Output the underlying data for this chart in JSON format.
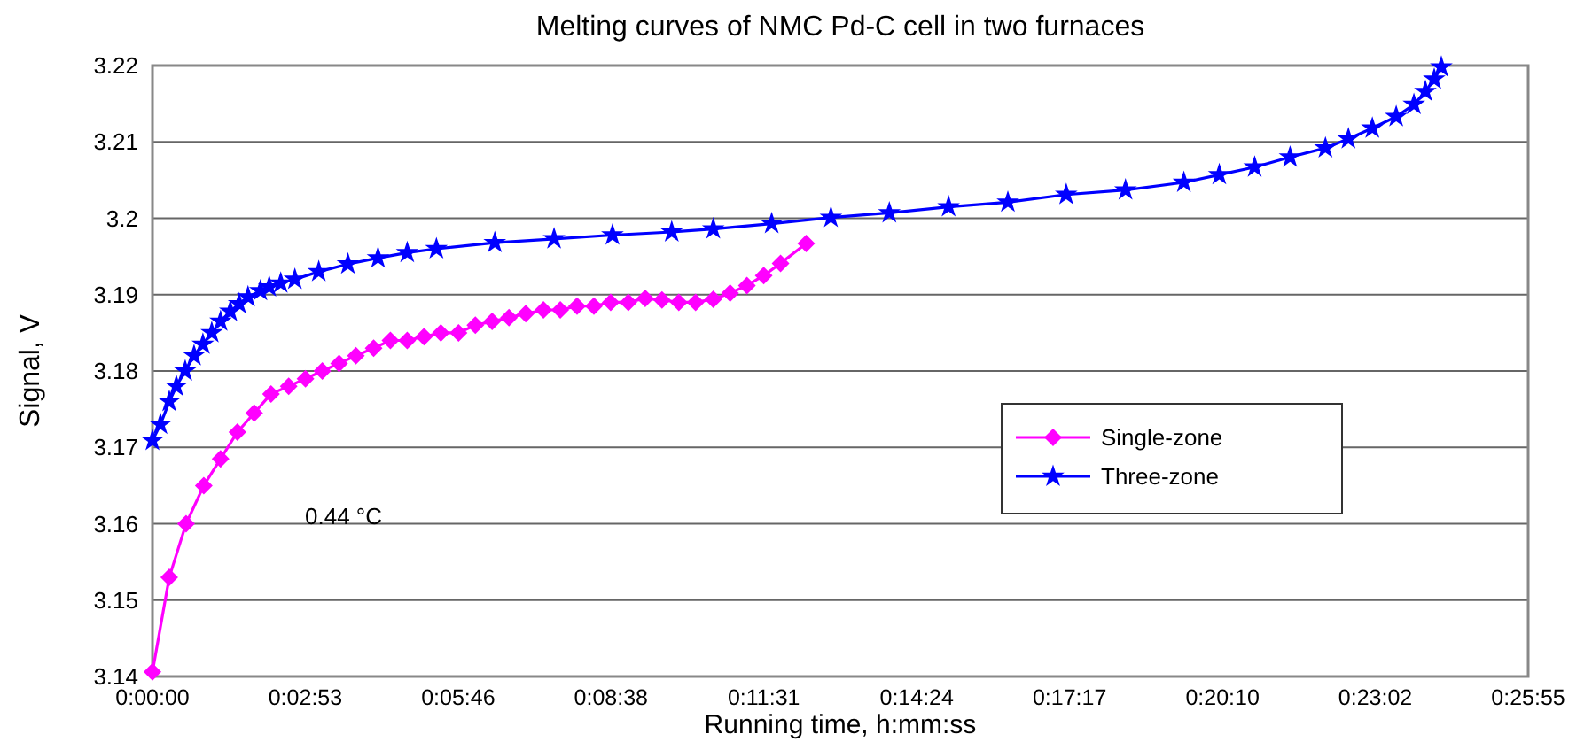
{
  "chart_data": {
    "type": "line",
    "title": "Melting curves of NMC Pd-C cell in two furnaces",
    "xlabel": "Running time, h:mm:ss",
    "ylabel": "Signal, V",
    "xlim": [
      0,
      1555.2
    ],
    "ylim": [
      3.14,
      3.22
    ],
    "xticks": [
      {
        "value": 0,
        "label": "0:00:00"
      },
      {
        "value": 172.8,
        "label": "0:02:53"
      },
      {
        "value": 345.6,
        "label": "0:05:46"
      },
      {
        "value": 518.4,
        "label": "0:08:38"
      },
      {
        "value": 691.2,
        "label": "0:11:31"
      },
      {
        "value": 864,
        "label": "0:14:24"
      },
      {
        "value": 1036.8,
        "label": "0:17:17"
      },
      {
        "value": 1209.6,
        "label": "0:20:10"
      },
      {
        "value": 1382.4,
        "label": "0:23:02"
      },
      {
        "value": 1555.2,
        "label": "0:25:55"
      }
    ],
    "yticks": [
      3.14,
      3.15,
      3.16,
      3.17,
      3.18,
      3.19,
      3.2,
      3.21,
      3.22
    ],
    "grid": "y",
    "legend": "right",
    "annotations": [
      "0.44 °C"
    ],
    "series": [
      {
        "name": "Single-zone",
        "color": "#ff00ff",
        "marker": "diamond",
        "x": [
          0,
          19,
          38,
          58,
          77,
          96,
          115,
          134,
          154,
          173,
          192,
          211,
          230,
          250,
          269,
          288,
          307,
          326,
          346,
          365,
          384,
          403,
          422,
          442,
          461,
          480,
          499,
          518,
          538,
          557,
          576,
          595,
          614,
          634,
          653,
          672,
          691,
          710,
          739
        ],
        "values": [
          3.1406,
          3.153,
          3.16,
          3.165,
          3.1685,
          3.172,
          3.1745,
          3.177,
          3.178,
          3.179,
          3.18,
          3.181,
          3.182,
          3.183,
          3.184,
          3.184,
          3.1845,
          3.185,
          3.185,
          3.186,
          3.1865,
          3.187,
          3.1875,
          3.188,
          3.188,
          3.1885,
          3.1885,
          3.189,
          3.189,
          3.1895,
          3.1893,
          3.189,
          3.189,
          3.1894,
          3.1902,
          3.1912,
          3.1925,
          3.1941,
          3.1967
        ]
      },
      {
        "name": "Three-zone",
        "color": "#0000ff",
        "marker": "star",
        "x": [
          0,
          9,
          19,
          27,
          37,
          47,
          57,
          67,
          77,
          88,
          98,
          108,
          122,
          132,
          145,
          161,
          188,
          221,
          255,
          288,
          321,
          387,
          454,
          520,
          587,
          634,
          700,
          767,
          833,
          900,
          967,
          1033,
          1100,
          1166,
          1206,
          1246,
          1286,
          1326,
          1352,
          1379,
          1406,
          1426,
          1439,
          1449,
          1457
        ],
        "values": [
          3.1709,
          3.173,
          3.176,
          3.178,
          3.18,
          3.182,
          3.1835,
          3.185,
          3.1865,
          3.1878,
          3.1888,
          3.1897,
          3.1905,
          3.191,
          3.1915,
          3.192,
          3.193,
          3.194,
          3.1948,
          3.1955,
          3.196,
          3.1968,
          3.1973,
          3.1978,
          3.1982,
          3.1986,
          3.1993,
          3.2001,
          3.2007,
          3.2015,
          3.2021,
          3.2031,
          3.2037,
          3.2047,
          3.2057,
          3.2067,
          3.208,
          3.2092,
          3.2104,
          3.2118,
          3.2133,
          3.2149,
          3.2166,
          3.2182,
          3.2198
        ]
      }
    ]
  }
}
